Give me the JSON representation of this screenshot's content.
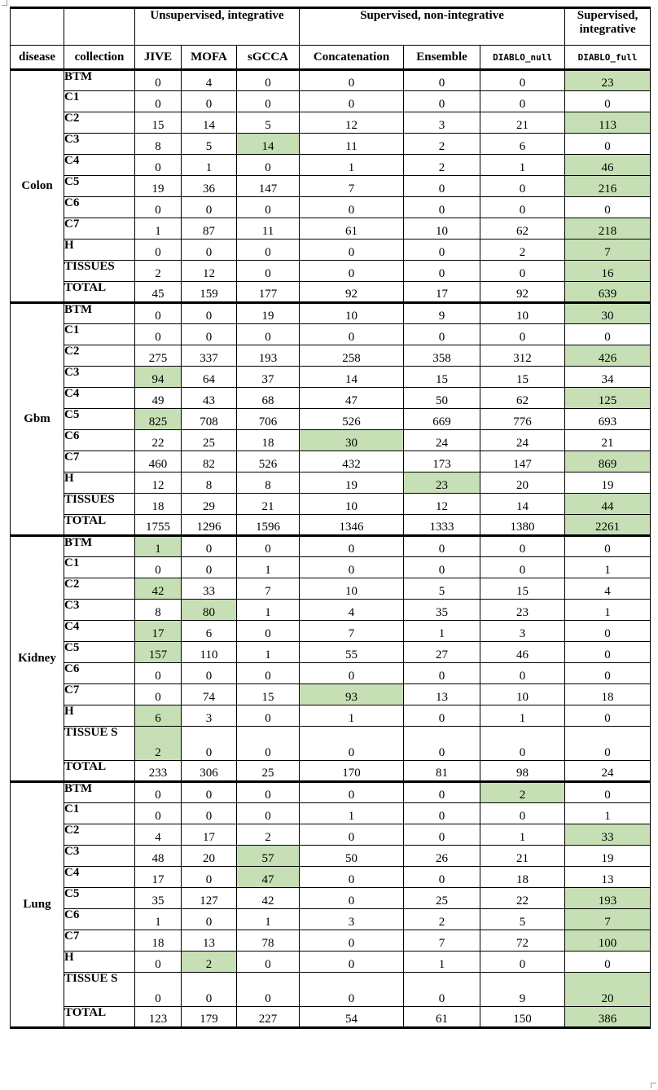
{
  "table": {
    "group_headers": [
      {
        "label": "",
        "span": 1
      },
      {
        "label": "",
        "span": 1
      },
      {
        "label": "Unsupervised, integrative",
        "span": 3
      },
      {
        "label": "Supervised, non-integrative",
        "span": 3
      },
      {
        "label": "Supervised, integrative",
        "span": 1
      }
    ],
    "column_headers": [
      "disease",
      "collection",
      "JIVE",
      "MOFA",
      "sGCCA",
      "Concatenation",
      "Ensemble",
      "DIABLO_null",
      "DIABLO_full"
    ],
    "sections": [
      {
        "disease": "Colon",
        "rows": [
          {
            "collection": "BTM",
            "values": [
              "0",
              "4",
              "0",
              "0",
              "0",
              "0",
              "23"
            ],
            "highlight": [
              6
            ]
          },
          {
            "collection": "C1",
            "values": [
              "0",
              "0",
              "0",
              "0",
              "0",
              "0",
              "0"
            ],
            "highlight": []
          },
          {
            "collection": "C2",
            "values": [
              "15",
              "14",
              "5",
              "12",
              "3",
              "21",
              "113"
            ],
            "highlight": [
              6
            ]
          },
          {
            "collection": "C3",
            "values": [
              "8",
              "5",
              "14",
              "11",
              "2",
              "6",
              "0"
            ],
            "highlight": [
              2
            ]
          },
          {
            "collection": "C4",
            "values": [
              "0",
              "1",
              "0",
              "1",
              "2",
              "1",
              "46"
            ],
            "highlight": [
              6
            ]
          },
          {
            "collection": "C5",
            "values": [
              "19",
              "36",
              "147",
              "7",
              "0",
              "0",
              "216"
            ],
            "highlight": [
              6
            ]
          },
          {
            "collection": "C6",
            "values": [
              "0",
              "0",
              "0",
              "0",
              "0",
              "0",
              "0"
            ],
            "highlight": []
          },
          {
            "collection": "C7",
            "values": [
              "1",
              "87",
              "11",
              "61",
              "10",
              "62",
              "218"
            ],
            "highlight": [
              6
            ]
          },
          {
            "collection": "H",
            "values": [
              "0",
              "0",
              "0",
              "0",
              "0",
              "2",
              "7"
            ],
            "highlight": [
              6
            ]
          },
          {
            "collection": "TISSUES",
            "values": [
              "2",
              "12",
              "0",
              "0",
              "0",
              "0",
              "16"
            ],
            "highlight": [
              6
            ]
          },
          {
            "collection": "TOTAL",
            "values": [
              "45",
              "159",
              "177",
              "92",
              "17",
              "92",
              "639"
            ],
            "highlight": [
              6
            ]
          }
        ]
      },
      {
        "disease": "Gbm",
        "rows": [
          {
            "collection": "BTM",
            "values": [
              "0",
              "0",
              "19",
              "10",
              "9",
              "10",
              "30"
            ],
            "highlight": [
              6
            ]
          },
          {
            "collection": "C1",
            "values": [
              "0",
              "0",
              "0",
              "0",
              "0",
              "0",
              "0"
            ],
            "highlight": []
          },
          {
            "collection": "C2",
            "values": [
              "275",
              "337",
              "193",
              "258",
              "358",
              "312",
              "426"
            ],
            "highlight": [
              6
            ]
          },
          {
            "collection": "C3",
            "values": [
              "94",
              "64",
              "37",
              "14",
              "15",
              "15",
              "34"
            ],
            "highlight": [
              0
            ]
          },
          {
            "collection": "C4",
            "values": [
              "49",
              "43",
              "68",
              "47",
              "50",
              "62",
              "125"
            ],
            "highlight": [
              6
            ]
          },
          {
            "collection": "C5",
            "values": [
              "825",
              "708",
              "706",
              "526",
              "669",
              "776",
              "693"
            ],
            "highlight": [
              0
            ]
          },
          {
            "collection": "C6",
            "values": [
              "22",
              "25",
              "18",
              "30",
              "24",
              "24",
              "21"
            ],
            "highlight": [
              3
            ]
          },
          {
            "collection": "C7",
            "values": [
              "460",
              "82",
              "526",
              "432",
              "173",
              "147",
              "869"
            ],
            "highlight": [
              6
            ]
          },
          {
            "collection": "H",
            "values": [
              "12",
              "8",
              "8",
              "19",
              "23",
              "20",
              "19"
            ],
            "highlight": [
              4
            ]
          },
          {
            "collection": "TISSUES",
            "values": [
              "18",
              "29",
              "21",
              "10",
              "12",
              "14",
              "44"
            ],
            "highlight": [
              6
            ]
          },
          {
            "collection": "TOTAL",
            "values": [
              "1755",
              "1296",
              "1596",
              "1346",
              "1333",
              "1380",
              "2261"
            ],
            "highlight": [
              6
            ]
          }
        ]
      },
      {
        "disease": "Kidney",
        "rows": [
          {
            "collection": "BTM",
            "values": [
              "1",
              "0",
              "0",
              "0",
              "0",
              "0",
              "0"
            ],
            "highlight": [
              0
            ]
          },
          {
            "collection": "C1",
            "values": [
              "0",
              "0",
              "1",
              "0",
              "0",
              "0",
              "1"
            ],
            "highlight": []
          },
          {
            "collection": "C2",
            "values": [
              "42",
              "33",
              "7",
              "10",
              "5",
              "15",
              "4"
            ],
            "highlight": [
              0
            ]
          },
          {
            "collection": "C3",
            "values": [
              "8",
              "80",
              "1",
              "4",
              "35",
              "23",
              "1"
            ],
            "highlight": [
              1
            ]
          },
          {
            "collection": "C4",
            "values": [
              "17",
              "6",
              "0",
              "7",
              "1",
              "3",
              "0"
            ],
            "highlight": [
              0
            ]
          },
          {
            "collection": "C5",
            "values": [
              "157",
              "110",
              "1",
              "55",
              "27",
              "46",
              "0"
            ],
            "highlight": [
              0
            ]
          },
          {
            "collection": "C6",
            "values": [
              "0",
              "0",
              "0",
              "0",
              "0",
              "0",
              "0"
            ],
            "highlight": []
          },
          {
            "collection": "C7",
            "values": [
              "0",
              "74",
              "15",
              "93",
              "13",
              "10",
              "18"
            ],
            "highlight": [
              3
            ]
          },
          {
            "collection": "H",
            "values": [
              "6",
              "3",
              "0",
              "1",
              "0",
              "1",
              "0"
            ],
            "highlight": [
              0
            ]
          },
          {
            "collection": "TISSUE S",
            "values": [
              "2",
              "0",
              "0",
              "0",
              "0",
              "0",
              "0"
            ],
            "highlight": [
              0
            ],
            "tall": true
          },
          {
            "collection": "TOTAL",
            "values": [
              "233",
              "306",
              "25",
              "170",
              "81",
              "98",
              "24"
            ],
            "highlight": []
          }
        ]
      },
      {
        "disease": "Lung",
        "rows": [
          {
            "collection": "BTM",
            "values": [
              "0",
              "0",
              "0",
              "0",
              "0",
              "2",
              "0"
            ],
            "highlight": [
              5
            ]
          },
          {
            "collection": "C1",
            "values": [
              "0",
              "0",
              "0",
              "1",
              "0",
              "0",
              "1"
            ],
            "highlight": []
          },
          {
            "collection": "C2",
            "values": [
              "4",
              "17",
              "2",
              "0",
              "0",
              "1",
              "33"
            ],
            "highlight": [
              6
            ]
          },
          {
            "collection": "C3",
            "values": [
              "48",
              "20",
              "57",
              "50",
              "26",
              "21",
              "19"
            ],
            "highlight": [
              2
            ]
          },
          {
            "collection": "C4",
            "values": [
              "17",
              "0",
              "47",
              "0",
              "0",
              "18",
              "13"
            ],
            "highlight": [
              2
            ]
          },
          {
            "collection": "C5",
            "values": [
              "35",
              "127",
              "42",
              "0",
              "25",
              "22",
              "193"
            ],
            "highlight": [
              6
            ]
          },
          {
            "collection": "C6",
            "values": [
              "1",
              "0",
              "1",
              "3",
              "2",
              "5",
              "7"
            ],
            "highlight": [
              6
            ]
          },
          {
            "collection": "C7",
            "values": [
              "18",
              "13",
              "78",
              "0",
              "7",
              "72",
              "100"
            ],
            "highlight": [
              6
            ]
          },
          {
            "collection": "H",
            "values": [
              "0",
              "2",
              "0",
              "0",
              "1",
              "0",
              "0"
            ],
            "highlight": [
              1
            ]
          },
          {
            "collection": "TISSUE S",
            "values": [
              "0",
              "0",
              "0",
              "0",
              "0",
              "9",
              "20"
            ],
            "highlight": [
              6
            ],
            "tall": true
          },
          {
            "collection": "TOTAL",
            "values": [
              "123",
              "179",
              "227",
              "54",
              "61",
              "150",
              "386"
            ],
            "highlight": [
              6
            ]
          }
        ]
      }
    ]
  }
}
